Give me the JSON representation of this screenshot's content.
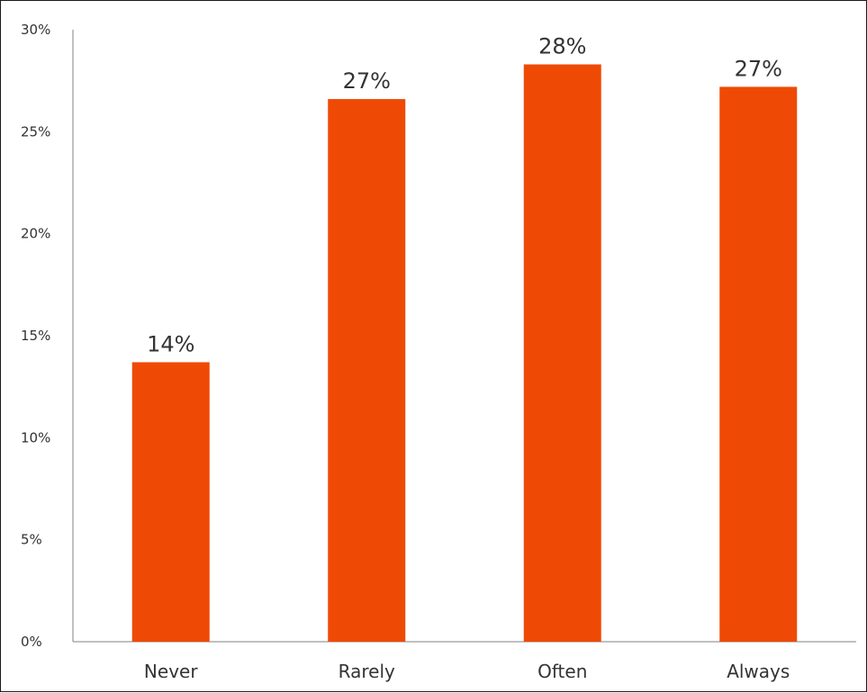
{
  "chart_data": {
    "type": "bar",
    "title": "",
    "xlabel": "",
    "ylabel": "",
    "categories": [
      "Never",
      "Rarely",
      "Often",
      "Always"
    ],
    "values": [
      13.7,
      26.6,
      28.3,
      27.2
    ],
    "data_labels": [
      "14%",
      "27%",
      "28%",
      "27%"
    ],
    "ylim": [
      0,
      30
    ],
    "yticks": [
      0,
      5,
      10,
      15,
      20,
      25,
      30
    ],
    "ytick_labels": [
      "0%",
      "5%",
      "10%",
      "15%",
      "20%",
      "25%",
      "30%"
    ],
    "grid": false,
    "legend": "none",
    "bar_color": "#EF4A05",
    "axis_color": "#808080",
    "text_color": "#333333"
  }
}
